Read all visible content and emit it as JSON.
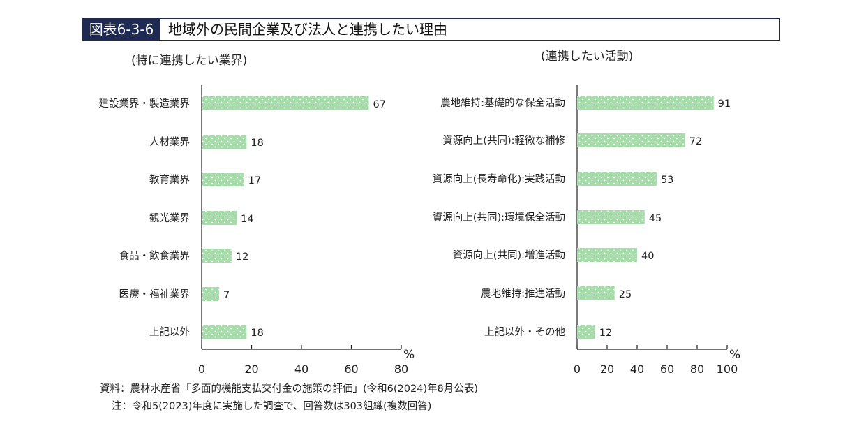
{
  "figure": {
    "id": "図表6-3-6",
    "title": "地域外の民間企業及び法人と連携したい理由",
    "source": "資料：農林水産省「多面的機能支払交付金の施策の評価」(令和6(2024)年8月公表)",
    "note": "注：令和5(2023)年度に実施した調査で、回答数は303組織(複数回答)"
  },
  "colors": {
    "bar_fill": "#a6dcaa",
    "bar_dot": "#ffffff",
    "title_bg": "#1f2a52",
    "axis": "#222222"
  },
  "chart_data": [
    {
      "type": "bar",
      "orientation": "horizontal",
      "title": "(特に連携したい業界)",
      "categories": [
        "建設業界・製造業界",
        "人材業界",
        "教育業界",
        "観光業界",
        "食品・飲食業界",
        "医療・福祉業界",
        "上記以外"
      ],
      "values": [
        67,
        18,
        17,
        14,
        12,
        7,
        18
      ],
      "xlim": [
        0,
        80
      ],
      "xticks": [
        0,
        20,
        40,
        60,
        80
      ],
      "unit": "%",
      "grid": false
    },
    {
      "type": "bar",
      "orientation": "horizontal",
      "title": "(連携したい活動)",
      "categories": [
        "農地維持:基礎的な保全活動",
        "資源向上(共同):軽微な補修",
        "資源向上(長寿命化):実践活動",
        "資源向上(共同):環境保全活動",
        "資源向上(共同):増進活動",
        "農地維持:推進活動",
        "上記以外・その他"
      ],
      "values": [
        91,
        72,
        53,
        45,
        40,
        25,
        12
      ],
      "xlim": [
        0,
        100
      ],
      "xticks": [
        0,
        20,
        40,
        60,
        80,
        100
      ],
      "unit": "%",
      "grid": false
    }
  ]
}
